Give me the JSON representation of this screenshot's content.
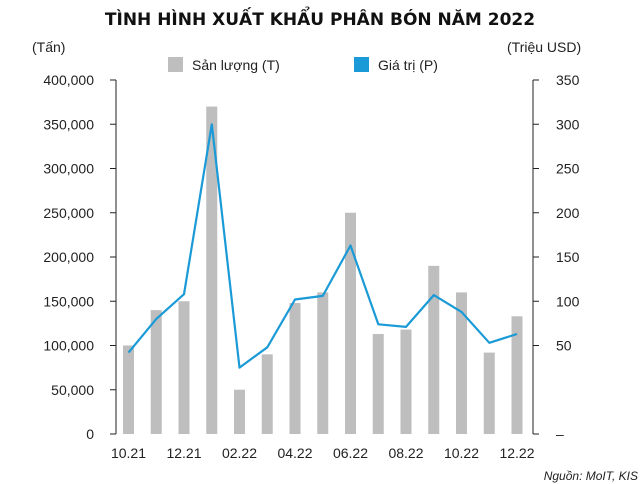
{
  "chart_data": {
    "type": "bar",
    "title": "TÌNH HÌNH XUẤT KHẨU PHÂN BÓN NĂM 2022",
    "left_unit": "(Tấn)",
    "right_unit": "(Triệu USD)",
    "source": "Nguồn: MoIT, KIS",
    "categories": [
      "10.21",
      "11.21",
      "12.21",
      "01.22",
      "02.22",
      "03.22",
      "04.22",
      "05.22",
      "06.22",
      "07.22",
      "08.22",
      "09.22",
      "10.22",
      "11.22",
      "12.22"
    ],
    "x_tick_labels": [
      "10.21",
      "12.21",
      "02.22",
      "04.22",
      "06.22",
      "08.22",
      "10.22",
      "12.22"
    ],
    "series": [
      {
        "name": "Sản lượng (T)",
        "type": "bar",
        "axis": "left",
        "color": "#bebebe",
        "values": [
          100000,
          140000,
          150000,
          370000,
          50000,
          90000,
          148000,
          160000,
          250000,
          113000,
          118000,
          190000,
          160000,
          92000,
          133000
        ]
      },
      {
        "name": "Giá trị (P)",
        "type": "line",
        "axis": "right",
        "color": "#1a9ad6",
        "values": [
          42,
          80,
          108,
          300,
          25,
          48,
          102,
          106,
          163,
          74,
          71,
          107,
          88,
          53,
          63
        ]
      }
    ],
    "y_left": {
      "min": 0,
      "max": 400000,
      "ticks": [
        0,
        50000,
        100000,
        150000,
        200000,
        250000,
        300000,
        350000,
        400000
      ],
      "tick_labels": [
        "0",
        "50,000",
        "100,000",
        "150,000",
        "200,000",
        "250,000",
        "300,000",
        "350,000",
        "400,000"
      ]
    },
    "y_right": {
      "min": -50,
      "max": 350,
      "ticks": [
        -50,
        50,
        100,
        150,
        200,
        250,
        300,
        350
      ],
      "tick_labels": [
        "–",
        "50",
        "100",
        "150",
        "200",
        "250",
        "300",
        "350"
      ]
    },
    "legend_position": "top-center",
    "grid": false
  }
}
